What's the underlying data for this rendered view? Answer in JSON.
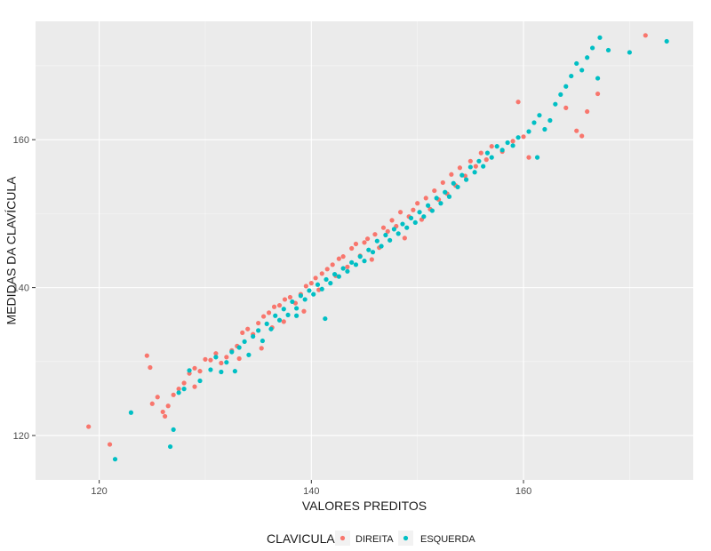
{
  "chart_data": {
    "type": "scatter",
    "title": "",
    "xlabel": "VALORES PREDITOS",
    "ylabel": "MEDIDAS DA CLAVÍCULA",
    "xlim": [
      114,
      176
    ],
    "ylim": [
      114,
      176
    ],
    "xticks": [
      120,
      140,
      160
    ],
    "yticks": [
      120,
      140,
      160
    ],
    "x_tick_labels": [
      "120",
      "140",
      "160"
    ],
    "y_tick_labels": [
      "120",
      "140",
      "160"
    ],
    "grid": true,
    "legend_title": "CLAVICULA",
    "legend_position": "bottom",
    "series": [
      {
        "name": "DIREITA",
        "color": "#F8766D",
        "points": [
          [
            119,
            121.2
          ],
          [
            121,
            118.8
          ],
          [
            124.5,
            130.8
          ],
          [
            124.8,
            129.2
          ],
          [
            125,
            124.3
          ],
          [
            125.5,
            125.2
          ],
          [
            126,
            123.2
          ],
          [
            126.2,
            122.6
          ],
          [
            126.5,
            124
          ],
          [
            127,
            125.5
          ],
          [
            127.5,
            126.3
          ],
          [
            128,
            127.1
          ],
          [
            128.5,
            128.4
          ],
          [
            129,
            129.1
          ],
          [
            129,
            126.6
          ],
          [
            129.5,
            128.7
          ],
          [
            130,
            130.3
          ],
          [
            130.5,
            130.2
          ],
          [
            131,
            131.1
          ],
          [
            131.5,
            129.8
          ],
          [
            132,
            130.6
          ],
          [
            132.5,
            131.5
          ],
          [
            133,
            132.1
          ],
          [
            133.2,
            130.4
          ],
          [
            133.5,
            133.9
          ],
          [
            134,
            134.4
          ],
          [
            134.5,
            133.7
          ],
          [
            135,
            135.2
          ],
          [
            135.3,
            131.8
          ],
          [
            135.5,
            136.1
          ],
          [
            136,
            136.6
          ],
          [
            136.3,
            134.6
          ],
          [
            136.5,
            137.4
          ],
          [
            137,
            137.6
          ],
          [
            137.4,
            135.4
          ],
          [
            137.5,
            138.4
          ],
          [
            138,
            138.7
          ],
          [
            138.5,
            137.9
          ],
          [
            139,
            139.1
          ],
          [
            139.3,
            136.8
          ],
          [
            139.5,
            140.2
          ],
          [
            140,
            140.6
          ],
          [
            140.4,
            141.3
          ],
          [
            140.7,
            139.7
          ],
          [
            141,
            141.9
          ],
          [
            141.5,
            142.5
          ],
          [
            142,
            143.1
          ],
          [
            142.3,
            141.6
          ],
          [
            142.6,
            143.9
          ],
          [
            143,
            144.2
          ],
          [
            143.4,
            142.8
          ],
          [
            143.8,
            145.3
          ],
          [
            144.2,
            145.9
          ],
          [
            144.6,
            144.3
          ],
          [
            145,
            146.1
          ],
          [
            145.3,
            146.6
          ],
          [
            145.7,
            143.8
          ],
          [
            146,
            147.2
          ],
          [
            146.4,
            145.4
          ],
          [
            146.8,
            148.1
          ],
          [
            147.2,
            147.6
          ],
          [
            147.6,
            149.1
          ],
          [
            148,
            148.3
          ],
          [
            148.4,
            150.2
          ],
          [
            148.8,
            146.7
          ],
          [
            149.2,
            149.6
          ],
          [
            149.6,
            150.5
          ],
          [
            150,
            151.4
          ],
          [
            150.4,
            149.2
          ],
          [
            150.8,
            152.1
          ],
          [
            151.2,
            150.6
          ],
          [
            151.6,
            153.1
          ],
          [
            152,
            151.9
          ],
          [
            152.4,
            154.2
          ],
          [
            152.8,
            152.7
          ],
          [
            153.2,
            155.3
          ],
          [
            153.6,
            153.8
          ],
          [
            154,
            156.2
          ],
          [
            154.5,
            155.1
          ],
          [
            155,
            157.1
          ],
          [
            155.5,
            156.4
          ],
          [
            156,
            158.2
          ],
          [
            156.5,
            157.3
          ],
          [
            157,
            159.1
          ],
          [
            158,
            158.4
          ],
          [
            159,
            159.8
          ],
          [
            159.5,
            165.1
          ],
          [
            160,
            160.4
          ],
          [
            160.5,
            157.6
          ],
          [
            164,
            164.3
          ],
          [
            165,
            161.2
          ],
          [
            165.5,
            160.5
          ],
          [
            166,
            163.8
          ],
          [
            167,
            166.2
          ],
          [
            171.5,
            174.1
          ]
        ]
      },
      {
        "name": "ESQUERDA",
        "color": "#00BFC4",
        "points": [
          [
            121.5,
            116.8
          ],
          [
            123,
            123.1
          ],
          [
            126.7,
            118.5
          ],
          [
            127,
            120.8
          ],
          [
            127.5,
            125.8
          ],
          [
            128,
            126.3
          ],
          [
            128.5,
            128.8
          ],
          [
            129.5,
            127.4
          ],
          [
            130.5,
            128.9
          ],
          [
            131,
            130.6
          ],
          [
            131.5,
            128.6
          ],
          [
            132,
            129.9
          ],
          [
            132.5,
            131.3
          ],
          [
            132.8,
            128.7
          ],
          [
            133.2,
            131.9
          ],
          [
            133.7,
            132.7
          ],
          [
            134.1,
            130.9
          ],
          [
            134.5,
            133.4
          ],
          [
            135,
            134.2
          ],
          [
            135.4,
            132.8
          ],
          [
            135.8,
            135.1
          ],
          [
            136.2,
            134.4
          ],
          [
            136.6,
            136.2
          ],
          [
            137,
            135.6
          ],
          [
            137.4,
            137.1
          ],
          [
            137.8,
            136.3
          ],
          [
            138.2,
            138.1
          ],
          [
            138.6,
            137.2
          ],
          [
            139,
            138.9
          ],
          [
            139.4,
            138.4
          ],
          [
            139.8,
            139.6
          ],
          [
            140.2,
            139.1
          ],
          [
            140.6,
            140.4
          ],
          [
            141,
            139.8
          ],
          [
            141.4,
            141.1
          ],
          [
            141.8,
            140.6
          ],
          [
            142.2,
            141.8
          ],
          [
            142.6,
            141.5
          ],
          [
            143,
            142.6
          ],
          [
            143.4,
            142.2
          ],
          [
            143.8,
            143.4
          ],
          [
            144.2,
            143.1
          ],
          [
            144.6,
            144.2
          ],
          [
            145,
            143.6
          ],
          [
            145.4,
            145.1
          ],
          [
            145.8,
            144.8
          ],
          [
            146.2,
            146.3
          ],
          [
            146.6,
            145.6
          ],
          [
            147,
            147.1
          ],
          [
            147.4,
            146.4
          ],
          [
            147.8,
            147.9
          ],
          [
            148.2,
            147.3
          ],
          [
            148.6,
            148.6
          ],
          [
            149,
            148.1
          ],
          [
            149.4,
            149.4
          ],
          [
            149.8,
            148.8
          ],
          [
            150.2,
            150.2
          ],
          [
            150.6,
            149.6
          ],
          [
            151,
            151.1
          ],
          [
            151.4,
            150.4
          ],
          [
            151.8,
            152.1
          ],
          [
            152.2,
            151.4
          ],
          [
            152.6,
            152.9
          ],
          [
            153,
            152.3
          ],
          [
            153.4,
            154.1
          ],
          [
            153.8,
            153.6
          ],
          [
            154.2,
            155.2
          ],
          [
            154.6,
            154.6
          ],
          [
            155,
            156.3
          ],
          [
            155.4,
            155.6
          ],
          [
            155.8,
            157.1
          ],
          [
            156.2,
            156.4
          ],
          [
            156.6,
            158.2
          ],
          [
            157,
            157.6
          ],
          [
            157.5,
            159.1
          ],
          [
            158,
            158.6
          ],
          [
            158.5,
            159.6
          ],
          [
            159,
            159.2
          ],
          [
            159.5,
            160.3
          ],
          [
            160.5,
            161.1
          ],
          [
            161,
            162.3
          ],
          [
            161.5,
            163.3
          ],
          [
            162,
            161.4
          ],
          [
            162.5,
            162.6
          ],
          [
            163,
            164.8
          ],
          [
            163.5,
            166.1
          ],
          [
            164,
            167.2
          ],
          [
            164.5,
            168.6
          ],
          [
            165,
            170.3
          ],
          [
            165.5,
            169.4
          ],
          [
            166,
            171.1
          ],
          [
            166.5,
            172.4
          ],
          [
            167,
            168.3
          ],
          [
            167.2,
            173.8
          ],
          [
            168,
            172.1
          ],
          [
            173.5,
            173.3
          ],
          [
            170,
            171.8
          ],
          [
            161.3,
            157.6
          ],
          [
            138.6,
            136.2
          ],
          [
            141.3,
            135.8
          ]
        ]
      }
    ]
  }
}
